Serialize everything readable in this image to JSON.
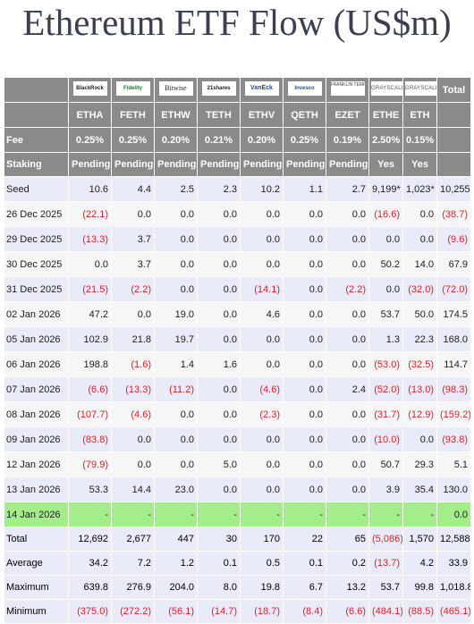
{
  "title": "Ethereum ETF Flow (US$m)",
  "header": {
    "total_label": "Total",
    "fee_label": "Fee",
    "staking_label": "Staking"
  },
  "issuers": [
    {
      "logo_text": "BlackRock",
      "icon": "blackrock-logo-icon",
      "ticker": "ETHA",
      "fee": "0.25%",
      "staking": "Pending"
    },
    {
      "logo_text": "Fidelity",
      "icon": "fidelity-logo-icon",
      "ticker": "FETH",
      "fee": "0.25%",
      "staking": "Pending"
    },
    {
      "logo_text": "Bitwise",
      "icon": "bitwise-logo-icon",
      "ticker": "ETHW",
      "fee": "0.20%",
      "staking": "Pending"
    },
    {
      "logo_text": "21shares",
      "icon": "21shares-logo-icon",
      "ticker": "TETH",
      "fee": "0.21%",
      "staking": "Pending"
    },
    {
      "logo_text": "VanEck",
      "icon": "vaneck-logo-icon",
      "ticker": "ETHV",
      "fee": "0.20%",
      "staking": "Pending"
    },
    {
      "logo_text": "Invesco",
      "icon": "invesco-logo-icon",
      "ticker": "QETH",
      "fee": "0.25%",
      "staking": "Pending"
    },
    {
      "logo_text": "FRANKLIN TEMPLETON",
      "icon": "franklin-templeton-logo-icon",
      "ticker": "EZET",
      "fee": "0.19%",
      "staking": "Pending"
    },
    {
      "logo_text": "GRAYSCALE",
      "icon": "grayscale-logo-icon",
      "ticker": "ETHE",
      "fee": "2.50%",
      "staking": "Yes"
    },
    {
      "logo_text": "GRAYSCALE",
      "icon": "grayscale-logo-icon",
      "ticker": "ETH",
      "fee": "0.15%",
      "staking": "Yes"
    }
  ],
  "chart_data": {
    "type": "table",
    "title": "Ethereum ETF Flow (US$m)",
    "columns": [
      "ETHA",
      "FETH",
      "ETHW",
      "TETH",
      "ETHV",
      "QETH",
      "EZET",
      "ETHE",
      "ETH",
      "Total"
    ],
    "rows": [
      {
        "label": "Seed",
        "values": [
          "10.6",
          "4.4",
          "2.5",
          "2.3",
          "10.2",
          "1.1",
          "2.7",
          "9,199*",
          "1,023*",
          "10,255"
        ]
      },
      {
        "label": "26 Dec 2025",
        "values": [
          "(22.1)",
          "0.0",
          "0.0",
          "0.0",
          "0.0",
          "0.0",
          "0.0",
          "(16.6)",
          "0.0",
          "(38.7)"
        ]
      },
      {
        "label": "29 Dec 2025",
        "values": [
          "(13.3)",
          "3.7",
          "0.0",
          "0.0",
          "0.0",
          "0.0",
          "0.0",
          "0.0",
          "0.0",
          "(9.6)"
        ]
      },
      {
        "label": "30 Dec 2025",
        "values": [
          "0.0",
          "3.7",
          "0.0",
          "0.0",
          "0.0",
          "0.0",
          "0.0",
          "50.2",
          "14.0",
          "67.9"
        ]
      },
      {
        "label": "31 Dec 2025",
        "values": [
          "(21.5)",
          "(2.2)",
          "0.0",
          "0.0",
          "(14.1)",
          "0.0",
          "(2.2)",
          "0.0",
          "(32.0)",
          "(72.0)"
        ]
      },
      {
        "label": "02 Jan 2026",
        "values": [
          "47.2",
          "0.0",
          "19.0",
          "0.0",
          "4.6",
          "0.0",
          "0.0",
          "53.7",
          "50.0",
          "174.5"
        ]
      },
      {
        "label": "05 Jan 2026",
        "values": [
          "102.9",
          "21.8",
          "19.7",
          "0.0",
          "0.0",
          "0.0",
          "0.0",
          "1.3",
          "22.3",
          "168.0"
        ]
      },
      {
        "label": "06 Jan 2026",
        "values": [
          "198.8",
          "(1.6)",
          "1.4",
          "1.6",
          "0.0",
          "0.0",
          "0.0",
          "(53.0)",
          "(32.5)",
          "114.7"
        ]
      },
      {
        "label": "07 Jan 2026",
        "values": [
          "(6.6)",
          "(13.3)",
          "(11.2)",
          "0.0",
          "(4.6)",
          "0.0",
          "2.4",
          "(52.0)",
          "(13.0)",
          "(98.3)"
        ]
      },
      {
        "label": "08 Jan 2026",
        "values": [
          "(107.7)",
          "(4.6)",
          "0.0",
          "0.0",
          "(2.3)",
          "0.0",
          "0.0",
          "(31.7)",
          "(12.9)",
          "(159.2)"
        ]
      },
      {
        "label": "09 Jan 2026",
        "values": [
          "(83.8)",
          "0.0",
          "0.0",
          "0.0",
          "0.0",
          "0.0",
          "0.0",
          "(10.0)",
          "0.0",
          "(93.8)"
        ]
      },
      {
        "label": "12 Jan 2026",
        "values": [
          "(79.9)",
          "0.0",
          "0.0",
          "5.0",
          "0.0",
          "0.0",
          "0.0",
          "50.7",
          "29.3",
          "5.1"
        ]
      },
      {
        "label": "13 Jan 2026",
        "values": [
          "53.3",
          "14.4",
          "23.0",
          "0.0",
          "0.0",
          "0.0",
          "0.0",
          "3.9",
          "35.4",
          "130.0"
        ]
      },
      {
        "label": "14 Jan 2026",
        "highlight": true,
        "values": [
          "-",
          "-",
          "-",
          "-",
          "-",
          "-",
          "-",
          "-",
          "-",
          "0.0"
        ]
      }
    ],
    "summary": [
      {
        "label": "Total",
        "values": [
          "12,692",
          "2,677",
          "447",
          "30",
          "170",
          "22",
          "65",
          "(5,086)",
          "1,570",
          "12,588"
        ]
      },
      {
        "label": "Average",
        "values": [
          "34.2",
          "7.2",
          "1.2",
          "0.1",
          "0.5",
          "0.1",
          "0.2",
          "(13.7)",
          "4.2",
          "33.9"
        ]
      },
      {
        "label": "Maximum",
        "values": [
          "639.8",
          "276.9",
          "204.0",
          "8.0",
          "19.8",
          "6.7",
          "13.2",
          "53.7",
          "99.8",
          "1,018.8"
        ]
      },
      {
        "label": "Minimum",
        "values": [
          "(375.0)",
          "(272.2)",
          "(56.1)",
          "(14.7)",
          "(18.7)",
          "(8.4)",
          "(6.6)",
          "(484.1)",
          "(88.5)",
          "(465.1)"
        ]
      }
    ],
    "colors": {
      "header_bg": "#8a8a8a",
      "row_alt_bg": "#e9ecf8",
      "row_bg": "#f6f6f6",
      "highlight_bg": "#a3ee8a",
      "negative_text": "#d8232a"
    }
  }
}
